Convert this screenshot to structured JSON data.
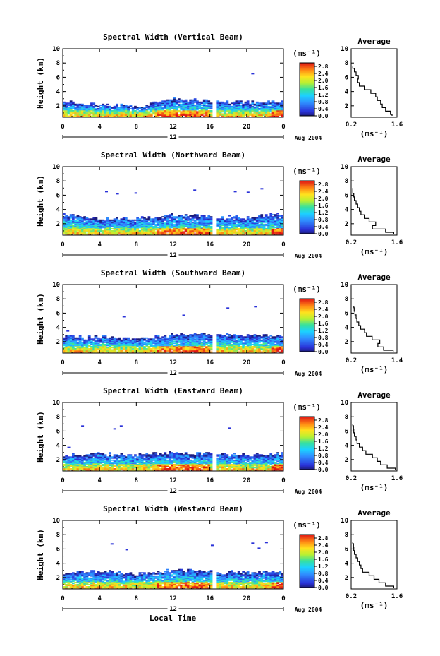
{
  "figure": {
    "xlabel": "Local Time",
    "date_label": "Aug 2004",
    "ylabel": "Height (km)",
    "unit_label": "(ms⁻¹)",
    "avg_title": "Average",
    "avg_xlabel": "(ms⁻¹)"
  },
  "chart_data": [
    {
      "type": "heatmap",
      "title": "Spectral Width (Vertical Beam)",
      "x_ticks": [
        "0",
        "4",
        "8",
        "12",
        "16",
        "20",
        "0"
      ],
      "x_day_label": "12",
      "xlim": [
        0,
        24
      ],
      "y_ticks": [
        "2",
        "4",
        "6",
        "8",
        "10"
      ],
      "ylim": [
        0.4,
        10
      ],
      "colorbar": {
        "ticks": [
          "0.0",
          "0.4",
          "0.8",
          "1.2",
          "1.6",
          "2.0",
          "2.4",
          "2.8"
        ],
        "range": [
          0,
          3
        ]
      },
      "data_gap_hours": [
        16.3,
        16.6
      ],
      "echo_top_km": {
        "hours": [
          0,
          4,
          8,
          12,
          16,
          20,
          24
        ],
        "height": [
          2.5,
          2.1,
          1.9,
          2.9,
          2.6,
          2.4,
          2.5
        ]
      },
      "sparse_echoes": [
        {
          "hour": 20.5,
          "km": 6.6
        }
      ],
      "average_profile": {
        "xlim": [
          0.2,
          1.6
        ],
        "x_ticks": [
          "0.2",
          "1.6"
        ],
        "y_ticks": [
          "2",
          "4",
          "6",
          "8",
          "10"
        ],
        "ylim": [
          0.4,
          10
        ],
        "height_km": [
          0.6,
          1.0,
          1.5,
          2.0,
          2.5,
          3.0,
          3.5,
          4.0,
          4.5,
          5.0,
          5.5,
          6.0,
          6.5,
          7.0,
          7.5
        ],
        "width": [
          1.45,
          1.4,
          1.25,
          1.15,
          1.1,
          1.0,
          0.95,
          0.8,
          0.6,
          0.45,
          0.4,
          0.42,
          0.35,
          0.3,
          0.25
        ]
      }
    },
    {
      "type": "heatmap",
      "title": "Spectral Width (Northward Beam)",
      "x_ticks": [
        "0",
        "4",
        "8",
        "12",
        "16",
        "20",
        "0"
      ],
      "x_day_label": "12",
      "xlim": [
        0,
        24
      ],
      "y_ticks": [
        "2",
        "4",
        "6",
        "8",
        "10"
      ],
      "ylim": [
        0.4,
        10
      ],
      "colorbar": {
        "ticks": [
          "0.0",
          "0.4",
          "0.8",
          "1.2",
          "1.6",
          "2.0",
          "2.4",
          "2.8"
        ],
        "range": [
          0,
          3
        ]
      },
      "data_gap_hours": [
        16.3,
        16.6
      ],
      "echo_top_km": {
        "hours": [
          0,
          4,
          8,
          12,
          16,
          20,
          24
        ],
        "height": [
          3.3,
          2.6,
          2.7,
          3.2,
          3.0,
          2.8,
          3.4
        ]
      },
      "sparse_echoes": [
        {
          "hour": 4.6,
          "km": 6.6
        },
        {
          "hour": 5.8,
          "km": 6.3
        },
        {
          "hour": 7.8,
          "km": 6.4
        },
        {
          "hour": 14.2,
          "km": 6.8
        },
        {
          "hour": 18.6,
          "km": 6.6
        },
        {
          "hour": 20.0,
          "km": 6.5
        },
        {
          "hour": 21.5,
          "km": 7.0
        }
      ],
      "average_profile": {
        "xlim": [
          0.2,
          1.6
        ],
        "x_ticks": [
          "0.2",
          "1.6"
        ],
        "y_ticks": [
          "2",
          "4",
          "6",
          "8",
          "10"
        ],
        "ylim": [
          0.4,
          10
        ],
        "height_km": [
          0.6,
          1.0,
          1.5,
          2.0,
          2.5,
          3.0,
          3.5,
          4.0,
          4.5,
          5.0,
          5.5,
          6.0,
          6.5,
          7.0
        ],
        "width": [
          1.5,
          1.25,
          0.85,
          0.95,
          0.75,
          0.6,
          0.5,
          0.45,
          0.4,
          0.35,
          0.3,
          0.28,
          0.25,
          0.25
        ]
      }
    },
    {
      "type": "heatmap",
      "title": "Spectral Width (Southward Beam)",
      "x_ticks": [
        "0",
        "4",
        "8",
        "12",
        "16",
        "20",
        "0"
      ],
      "x_day_label": "12",
      "xlim": [
        0,
        24
      ],
      "y_ticks": [
        "2",
        "4",
        "6",
        "8",
        "10"
      ],
      "ylim": [
        0.4,
        10
      ],
      "colorbar": {
        "ticks": [
          "0.0",
          "0.4",
          "0.8",
          "1.2",
          "1.6",
          "2.0",
          "2.4",
          "2.8"
        ],
        "range": [
          0,
          3
        ]
      },
      "data_gap_hours": [
        16.3,
        16.6
      ],
      "echo_top_km": {
        "hours": [
          0,
          4,
          8,
          12,
          16,
          20,
          24
        ],
        "height": [
          2.7,
          2.6,
          2.4,
          2.9,
          3.0,
          2.8,
          2.9
        ]
      },
      "sparse_echoes": [
        {
          "hour": 0.4,
          "km": 3.6
        },
        {
          "hour": 6.5,
          "km": 5.6
        },
        {
          "hour": 13.0,
          "km": 5.8
        },
        {
          "hour": 17.8,
          "km": 6.8
        },
        {
          "hour": 20.8,
          "km": 7.0
        }
      ],
      "average_profile": {
        "xlim": [
          0.2,
          1.4
        ],
        "x_ticks": [
          "0.2",
          "1.4"
        ],
        "y_ticks": [
          "2",
          "4",
          "6",
          "8",
          "10"
        ],
        "ylim": [
          0.4,
          10
        ],
        "height_km": [
          0.6,
          1.0,
          1.5,
          2.0,
          2.5,
          3.0,
          3.5,
          4.0,
          4.5,
          5.0,
          5.5,
          6.0,
          6.5,
          7.0
        ],
        "width": [
          1.3,
          1.05,
          0.9,
          0.95,
          0.75,
          0.6,
          0.55,
          0.45,
          0.4,
          0.35,
          0.33,
          0.3,
          0.28,
          0.27
        ]
      }
    },
    {
      "type": "heatmap",
      "title": "Spectral Width (Eastward Beam)",
      "x_ticks": [
        "0",
        "4",
        "8",
        "12",
        "16",
        "20",
        "0"
      ],
      "x_day_label": "12",
      "xlim": [
        0,
        24
      ],
      "y_ticks": [
        "2",
        "4",
        "6",
        "8",
        "10"
      ],
      "ylim": [
        0.4,
        10
      ],
      "colorbar": {
        "ticks": [
          "0.0",
          "0.4",
          "0.8",
          "1.2",
          "1.6",
          "2.0",
          "2.4",
          "2.8"
        ],
        "range": [
          0,
          3
        ]
      },
      "data_gap_hours": [
        16.3,
        16.6
      ],
      "echo_top_km": {
        "hours": [
          0,
          4,
          8,
          12,
          16,
          20,
          24
        ],
        "height": [
          2.5,
          2.7,
          2.6,
          2.9,
          2.7,
          2.6,
          2.8
        ]
      },
      "sparse_echoes": [
        {
          "hour": 0.5,
          "km": 3.8
        },
        {
          "hour": 2.0,
          "km": 6.8
        },
        {
          "hour": 5.5,
          "km": 6.4
        },
        {
          "hour": 6.2,
          "km": 6.8
        },
        {
          "hour": 18.0,
          "km": 6.5
        }
      ],
      "average_profile": {
        "xlim": [
          0.2,
          1.6
        ],
        "x_ticks": [
          "0.2",
          "1.6"
        ],
        "y_ticks": [
          "2",
          "4",
          "6",
          "8",
          "10"
        ],
        "ylim": [
          0.4,
          10
        ],
        "height_km": [
          0.6,
          1.0,
          1.5,
          2.0,
          2.5,
          3.0,
          3.5,
          4.0,
          4.5,
          5.0,
          5.5,
          6.0,
          6.5,
          7.0
        ],
        "width": [
          1.55,
          1.3,
          1.1,
          1.0,
          0.85,
          0.65,
          0.55,
          0.45,
          0.38,
          0.35,
          0.3,
          0.28,
          0.27,
          0.25
        ]
      }
    },
    {
      "type": "heatmap",
      "title": "Spectral Width (Westward Beam)",
      "x_ticks": [
        "0",
        "4",
        "8",
        "12",
        "16",
        "20",
        "0"
      ],
      "x_day_label": "12",
      "xlim": [
        0,
        24
      ],
      "y_ticks": [
        "2",
        "4",
        "6",
        "8",
        "10"
      ],
      "ylim": [
        0.4,
        10
      ],
      "colorbar": {
        "ticks": [
          "0.0",
          "0.4",
          "0.8",
          "1.2",
          "1.6",
          "2.0",
          "2.4",
          "2.8"
        ],
        "range": [
          0,
          3
        ]
      },
      "data_gap_hours": [
        16.3,
        16.6
      ],
      "echo_top_km": {
        "hours": [
          0,
          4,
          8,
          12,
          16,
          20,
          24
        ],
        "height": [
          2.6,
          2.8,
          2.4,
          3.0,
          2.8,
          2.6,
          2.7
        ]
      },
      "sparse_echoes": [
        {
          "hour": 5.2,
          "km": 6.8
        },
        {
          "hour": 6.8,
          "km": 6.0
        },
        {
          "hour": 16.1,
          "km": 6.6
        },
        {
          "hour": 20.5,
          "km": 6.9
        },
        {
          "hour": 21.2,
          "km": 6.2
        },
        {
          "hour": 22.0,
          "km": 7.0
        }
      ],
      "average_profile": {
        "xlim": [
          0.2,
          1.6
        ],
        "x_ticks": [
          "0.2",
          "1.6"
        ],
        "y_ticks": [
          "2",
          "4",
          "6",
          "8",
          "10"
        ],
        "ylim": [
          0.4,
          10
        ],
        "height_km": [
          0.6,
          1.0,
          1.5,
          2.0,
          2.5,
          3.0,
          3.5,
          4.0,
          4.5,
          5.0,
          5.5,
          6.0,
          6.5,
          7.0
        ],
        "width": [
          1.5,
          1.25,
          1.05,
          0.9,
          0.75,
          0.55,
          0.5,
          0.45,
          0.4,
          0.35,
          0.3,
          0.28,
          0.27,
          0.25
        ]
      }
    }
  ]
}
